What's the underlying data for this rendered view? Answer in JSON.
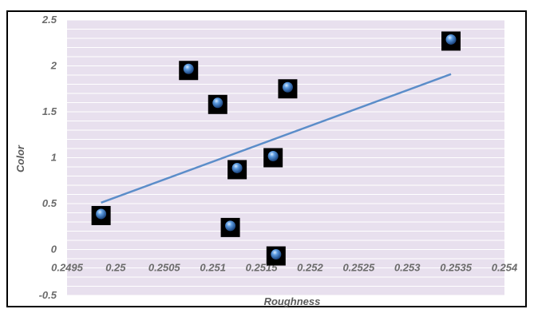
{
  "chart_data": {
    "type": "scatter",
    "title": "",
    "xlabel": "Roughness",
    "ylabel": "Color",
    "xlim": [
      0.2495,
      0.254
    ],
    "ylim": [
      -0.5,
      2.5
    ],
    "x_ticks": [
      "0.2495",
      "0.25",
      "0.2505",
      "0.251",
      "0.2515",
      "0.252",
      "0.2525",
      "0.253",
      "0.2535",
      "0.254"
    ],
    "y_ticks": [
      "-0.5",
      "0",
      "0.5",
      "1",
      "1.5",
      "2",
      "2.5"
    ],
    "x_tick_values": [
      0.2495,
      0.25,
      0.2505,
      0.251,
      0.2515,
      0.252,
      0.2525,
      0.253,
      0.2535,
      0.254
    ],
    "y_tick_values": [
      -0.5,
      0,
      0.5,
      1,
      1.5,
      2,
      2.5
    ],
    "grid": true,
    "legend": "none",
    "points": [
      {
        "x": 0.24985,
        "y": 0.37
      },
      {
        "x": 0.25075,
        "y": 1.95
      },
      {
        "x": 0.25105,
        "y": 1.58
      },
      {
        "x": 0.25118,
        "y": 0.24
      },
      {
        "x": 0.25125,
        "y": 0.87
      },
      {
        "x": 0.25162,
        "y": 1.0
      },
      {
        "x": 0.25165,
        "y": -0.07
      },
      {
        "x": 0.25177,
        "y": 1.75
      },
      {
        "x": 0.25345,
        "y": 2.27
      }
    ],
    "trendline": {
      "x": [
        0.24985,
        0.25345
      ],
      "y": [
        0.51,
        1.91
      ]
    },
    "colors": {
      "plot_background": "#e8e0ee",
      "gridline": "#ffffff",
      "trendline": "#5b8dc9",
      "marker_box": "#000000",
      "marker_sphere": "#2f6fbf"
    }
  }
}
